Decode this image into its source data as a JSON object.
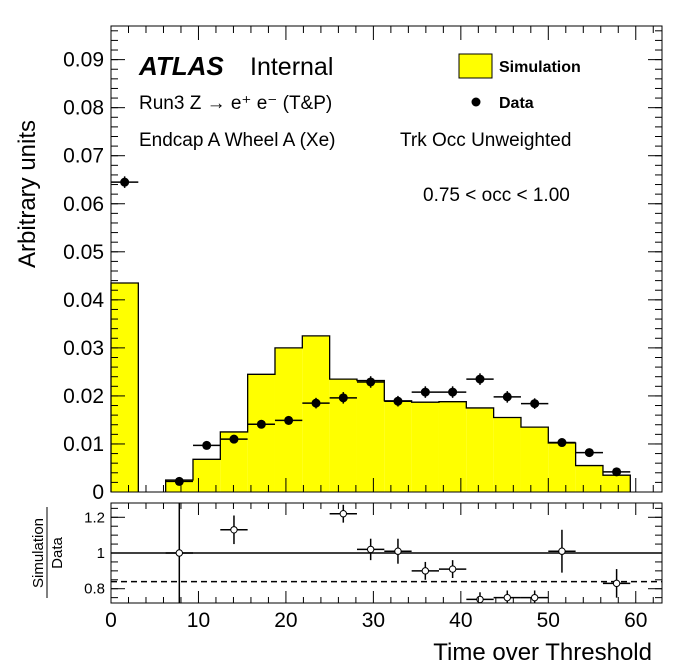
{
  "chart_data": [
    {
      "type": "bar",
      "panel": "main",
      "ylabel": "Arbitrary units",
      "xlim": [
        0,
        63
      ],
      "ylim": [
        0,
        0.097
      ],
      "yticks": [
        "0",
        "0.01",
        "0.02",
        "0.03",
        "0.04",
        "0.05",
        "0.06",
        "0.07",
        "0.08",
        "0.09"
      ],
      "ytick_values": [
        0,
        0.01,
        0.02,
        0.03,
        0.04,
        0.05,
        0.06,
        0.07,
        0.08,
        0.09
      ],
      "bin_width": 3.125,
      "series": [
        {
          "name": "Simulation",
          "style": "filled-histogram",
          "color": "#ffff00",
          "bins": [
            {
              "lo": 0,
              "hi": 3.125,
              "y": 0.0435
            },
            {
              "lo": 6.25,
              "hi": 9.375,
              "y": 0.0025
            },
            {
              "lo": 9.375,
              "hi": 12.5,
              "y": 0.0068
            },
            {
              "lo": 12.5,
              "hi": 15.625,
              "y": 0.0125
            },
            {
              "lo": 15.625,
              "hi": 18.75,
              "y": 0.0245
            },
            {
              "lo": 18.75,
              "hi": 21.875,
              "y": 0.03
            },
            {
              "lo": 21.875,
              "hi": 25.0,
              "y": 0.0325
            },
            {
              "lo": 25.0,
              "hi": 28.125,
              "y": 0.0235
            },
            {
              "lo": 28.125,
              "hi": 31.25,
              "y": 0.0232
            },
            {
              "lo": 31.25,
              "hi": 34.375,
              "y": 0.019
            },
            {
              "lo": 34.375,
              "hi": 37.5,
              "y": 0.0187
            },
            {
              "lo": 37.5,
              "hi": 40.625,
              "y": 0.0188
            },
            {
              "lo": 40.625,
              "hi": 43.75,
              "y": 0.0175
            },
            {
              "lo": 43.75,
              "hi": 46.875,
              "y": 0.0155
            },
            {
              "lo": 46.875,
              "hi": 50.0,
              "y": 0.0135
            },
            {
              "lo": 50.0,
              "hi": 53.125,
              "y": 0.0102
            },
            {
              "lo": 53.125,
              "hi": 56.25,
              "y": 0.0055
            },
            {
              "lo": 56.25,
              "hi": 59.375,
              "y": 0.0035
            }
          ]
        },
        {
          "name": "Data",
          "style": "points-with-errors",
          "color": "#000000",
          "points": [
            {
              "x": 1.56,
              "y": 0.0645,
              "err": 0.0012
            },
            {
              "x": 7.81,
              "y": 0.0022,
              "err": 0.0004
            },
            {
              "x": 10.94,
              "y": 0.0097,
              "err": 0.0007
            },
            {
              "x": 14.06,
              "y": 0.011,
              "err": 0.0008
            },
            {
              "x": 17.19,
              "y": 0.0141,
              "err": 0.0008
            },
            {
              "x": 20.31,
              "y": 0.0149,
              "err": 0.0009
            },
            {
              "x": 23.44,
              "y": 0.0185,
              "err": 0.0011
            },
            {
              "x": 26.56,
              "y": 0.0196,
              "err": 0.0012
            },
            {
              "x": 29.69,
              "y": 0.0229,
              "err": 0.0012
            },
            {
              "x": 32.81,
              "y": 0.0189,
              "err": 0.0011
            },
            {
              "x": 35.94,
              "y": 0.0208,
              "err": 0.0012
            },
            {
              "x": 39.06,
              "y": 0.0208,
              "err": 0.0012
            },
            {
              "x": 42.19,
              "y": 0.0235,
              "err": 0.0012
            },
            {
              "x": 45.31,
              "y": 0.0198,
              "err": 0.0012
            },
            {
              "x": 48.44,
              "y": 0.0184,
              "err": 0.0011
            },
            {
              "x": 51.56,
              "y": 0.0103,
              "err": 0.0008
            },
            {
              "x": 54.69,
              "y": 0.0082,
              "err": 0.0007
            },
            {
              "x": 57.81,
              "y": 0.0042,
              "err": 0.0005
            }
          ]
        }
      ],
      "legend": {
        "position": "top-right",
        "entries": [
          "Simulation",
          "Data"
        ]
      },
      "annotations": {
        "atlas": "ATLAS",
        "internal": "Internal",
        "line1": "Run3 Z → e⁺ e⁻ (T&P)",
        "line2": "Endcap A Wheel A (Xe)",
        "line3": "Trk Occ Unweighted",
        "line4": "0.75 < occ < 1.00"
      },
      "grid": false
    },
    {
      "type": "scatter",
      "panel": "ratio",
      "ylabel_top": "Simulation",
      "ylabel_bottom": "Data",
      "xlabel": "Time over Threshold",
      "xlim": [
        0,
        63
      ],
      "ylim": [
        0.72,
        1.28
      ],
      "yticks": [
        "0.8",
        "1",
        "1.2"
      ],
      "ytick_values": [
        0.8,
        1.0,
        1.2
      ],
      "xticks": [
        "0",
        "10",
        "20",
        "30",
        "40",
        "50",
        "60"
      ],
      "xtick_values": [
        0,
        10,
        20,
        30,
        40,
        50,
        60
      ],
      "reference_line": 1.0,
      "dashed_line": 0.84,
      "points": [
        {
          "x": 7.81,
          "y": 1.0,
          "err_lo": 0.35,
          "err_hi": 0.3
        },
        {
          "x": 14.06,
          "y": 1.13,
          "err_lo": 0.08,
          "err_hi": 0.08
        },
        {
          "x": 26.56,
          "y": 1.22,
          "err_lo": 0.05,
          "err_hi": 0.05
        },
        {
          "x": 29.69,
          "y": 1.02,
          "err_lo": 0.06,
          "err_hi": 0.06
        },
        {
          "x": 32.81,
          "y": 1.01,
          "err_lo": 0.07,
          "err_hi": 0.07
        },
        {
          "x": 35.94,
          "y": 0.9,
          "err_lo": 0.05,
          "err_hi": 0.05
        },
        {
          "x": 39.06,
          "y": 0.91,
          "err_lo": 0.05,
          "err_hi": 0.05
        },
        {
          "x": 42.19,
          "y": 0.74,
          "err_lo": 0.04,
          "err_hi": 0.04
        },
        {
          "x": 45.31,
          "y": 0.75,
          "err_lo": 0.04,
          "err_hi": 0.04
        },
        {
          "x": 48.44,
          "y": 0.75,
          "err_lo": 0.04,
          "err_hi": 0.04
        },
        {
          "x": 51.56,
          "y": 1.01,
          "err_lo": 0.12,
          "err_hi": 0.12
        },
        {
          "x": 57.81,
          "y": 0.83,
          "err_lo": 0.08,
          "err_hi": 0.08
        }
      ]
    }
  ]
}
